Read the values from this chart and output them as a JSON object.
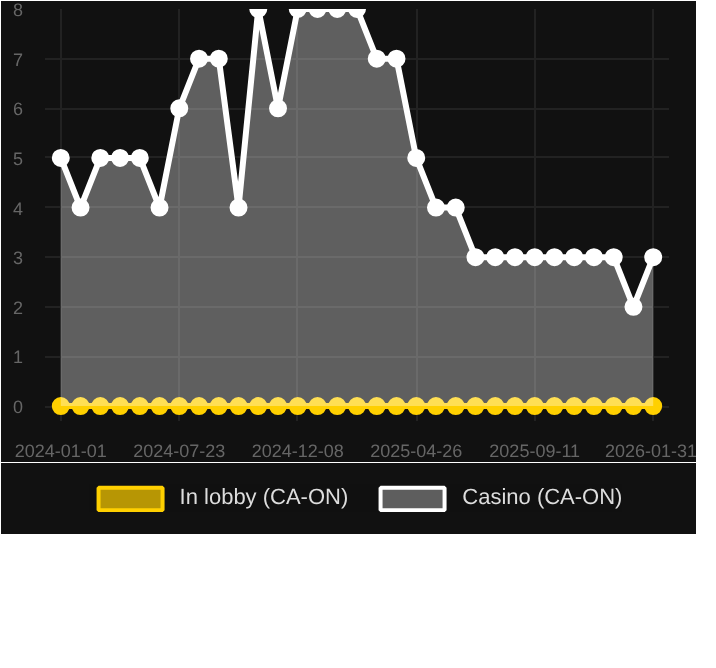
{
  "chart_data": {
    "type": "area",
    "categories": [
      "2024-01-01",
      null,
      null,
      null,
      null,
      null,
      "2024-07-23",
      null,
      null,
      null,
      null,
      null,
      "2024-12-08",
      null,
      null,
      null,
      null,
      null,
      "2025-04-26",
      null,
      null,
      null,
      null,
      null,
      "2025-09-11",
      null,
      null,
      null,
      null,
      null,
      "2026-01-31"
    ],
    "series": [
      {
        "name": "In lobby (CA-ON)",
        "type": "line",
        "color": "#ffd000",
        "values": [
          0,
          0,
          0,
          0,
          0,
          0,
          0,
          0,
          0,
          0,
          0,
          0,
          0,
          0,
          0,
          0,
          0,
          0,
          0,
          0,
          0,
          0,
          0,
          0,
          0,
          0,
          0,
          0,
          0,
          0,
          0
        ]
      },
      {
        "name": "Casino (CA-ON)",
        "color": "#ffffff",
        "values": [
          5,
          4,
          5,
          5,
          5,
          4,
          6,
          7,
          7,
          4,
          8,
          6,
          8,
          8,
          8,
          8,
          7,
          7,
          5,
          4,
          4,
          3,
          3,
          3,
          3,
          3,
          3,
          3,
          3,
          2,
          3
        ]
      }
    ],
    "ylim": [
      -0.3,
      8
    ],
    "yticks": [
      0,
      1,
      2,
      3,
      4,
      5,
      6,
      7,
      8
    ],
    "grid": true,
    "legend": "bottom",
    "marker": "circle",
    "line_style": "solid"
  }
}
